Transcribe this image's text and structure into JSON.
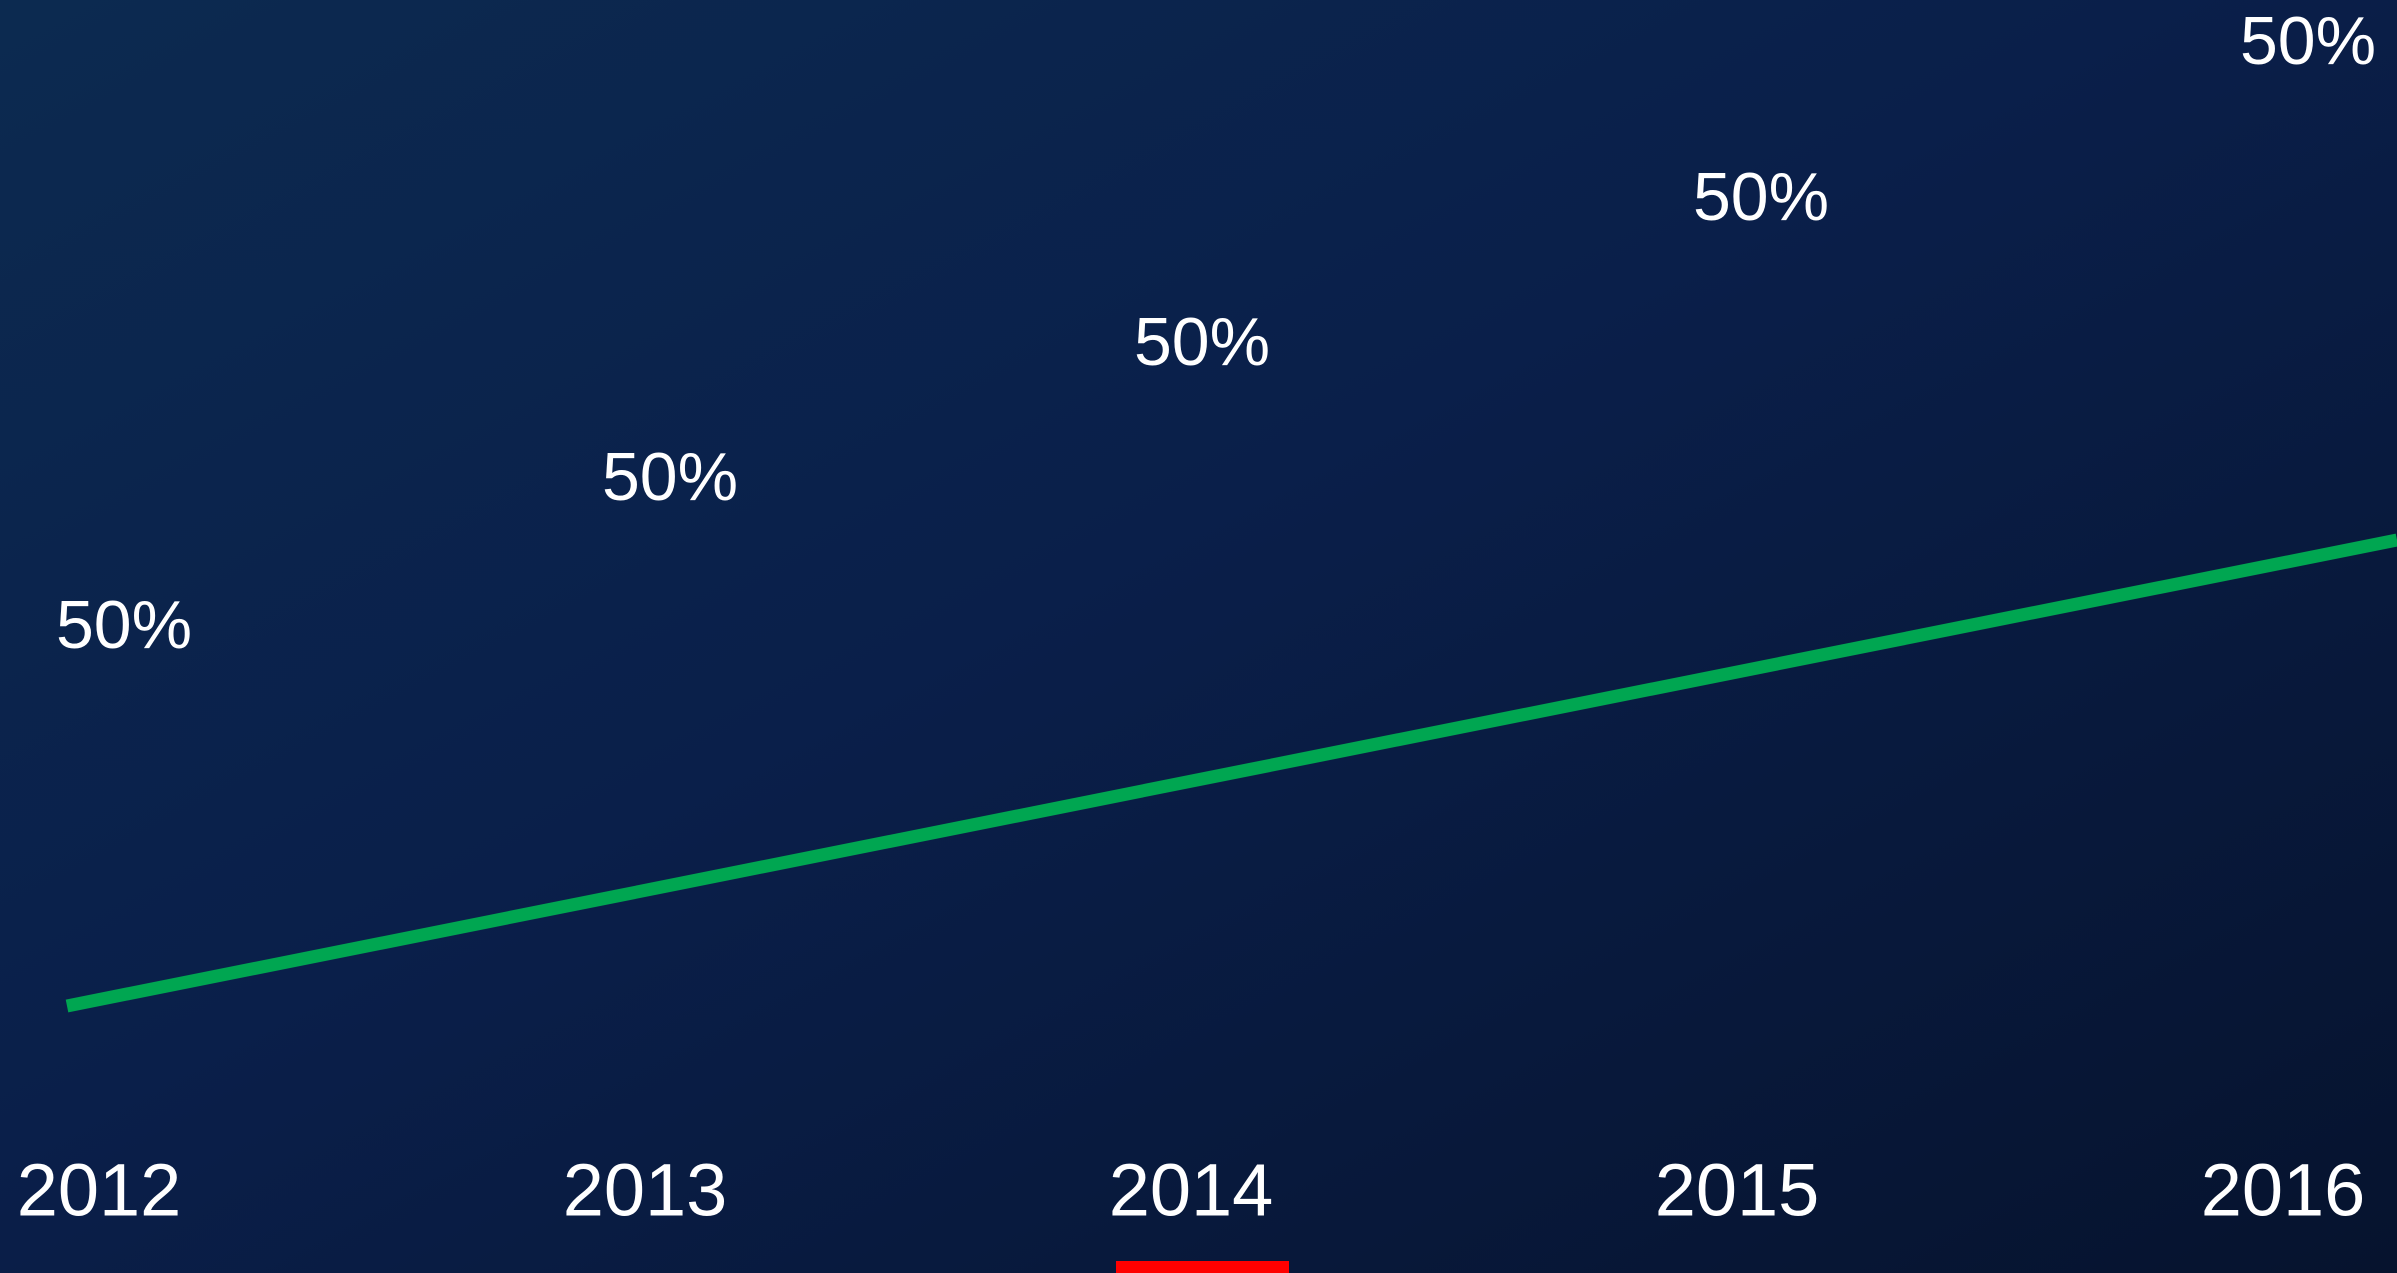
{
  "labels": [
    "50%",
    "50%",
    "50%",
    "50%",
    "50%"
  ],
  "years": [
    "2012",
    "2013",
    "2014",
    "2015",
    "2016"
  ]
}
